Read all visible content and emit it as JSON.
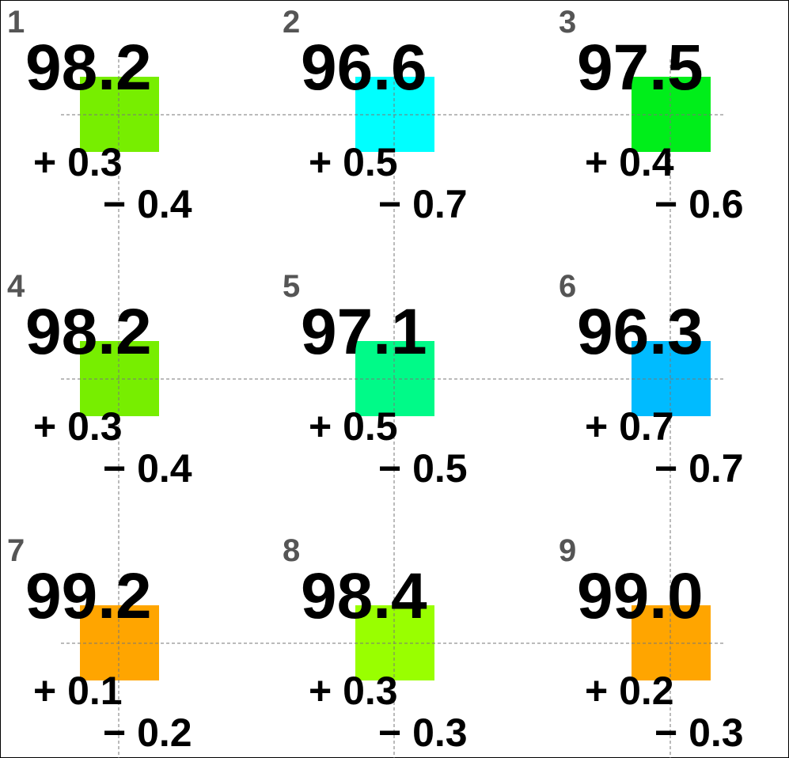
{
  "cells": [
    {
      "index": "1",
      "value": "98.2",
      "plus": "+ 0.3",
      "minus": "− 0.4",
      "color": "#77ee00"
    },
    {
      "index": "2",
      "value": "96.6",
      "plus": "+ 0.5",
      "minus": "− 0.7",
      "color": "#00ffff"
    },
    {
      "index": "3",
      "value": "97.5",
      "plus": "+ 0.4",
      "minus": "− 0.6",
      "color": "#00ee1a"
    },
    {
      "index": "4",
      "value": "98.2",
      "plus": "+ 0.3",
      "minus": "− 0.4",
      "color": "#77ee00"
    },
    {
      "index": "5",
      "value": "97.1",
      "plus": "+ 0.5",
      "minus": "− 0.5",
      "color": "#00fa88"
    },
    {
      "index": "6",
      "value": "96.3",
      "plus": "+ 0.7",
      "minus": "− 0.7",
      "color": "#00bbff"
    },
    {
      "index": "7",
      "value": "99.2",
      "plus": "+ 0.1",
      "minus": "− 0.2",
      "color": "#ffa500"
    },
    {
      "index": "8",
      "value": "98.4",
      "plus": "+ 0.3",
      "minus": "− 0.3",
      "color": "#99ff00"
    },
    {
      "index": "9",
      "value": "99.0",
      "plus": "+ 0.2",
      "minus": "− 0.3",
      "color": "#ffa500"
    }
  ]
}
